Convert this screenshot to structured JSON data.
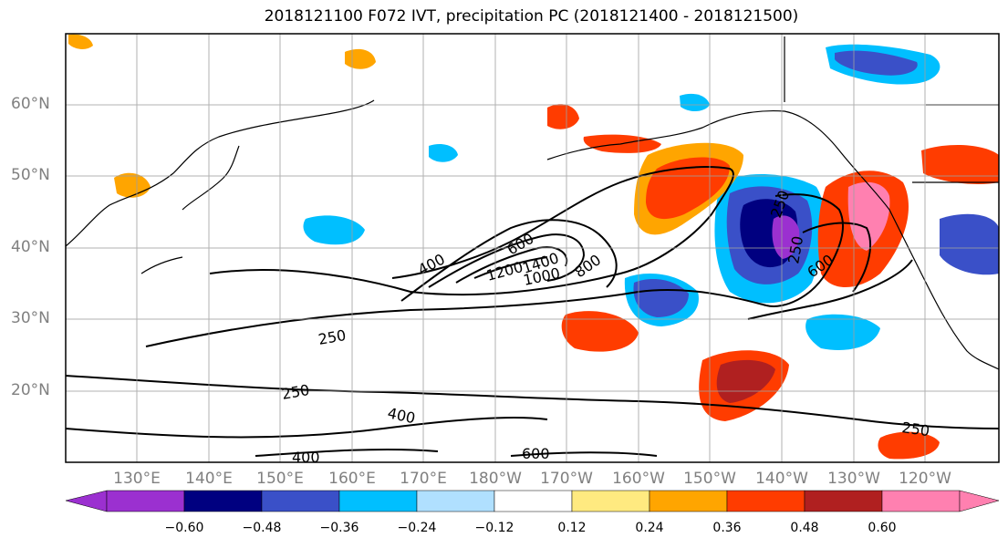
{
  "title": "2018121100 F072 IVT, precipitation PC (2018121400 - 2018121500)",
  "lat_labels": [
    "60°N",
    "50°N",
    "40°N",
    "30°N",
    "20°N"
  ],
  "lon_labels": [
    "130°E",
    "140°E",
    "150°E",
    "160°E",
    "170°E",
    "180°W",
    "170°W",
    "160°W",
    "150°W",
    "140°W",
    "130°W",
    "120°W"
  ],
  "contour_labels": [
    "400",
    "600",
    "1400",
    "1200",
    "1000",
    "800",
    "250",
    "250",
    "400",
    "400",
    "600",
    "250",
    "250",
    "600",
    "250"
  ],
  "colorbar": {
    "colors": [
      "#9b30d0",
      "#000080",
      "#3a50c8",
      "#00bfff",
      "#b0e0ff",
      "#ffffff",
      "#ffea80",
      "#ffa500",
      "#ff3c00",
      "#b02020",
      "#ff80b0"
    ],
    "extend_min_color": "#9b30d0",
    "extend_max_color": "#ff80b0",
    "labels": [
      "−0.60",
      "−0.48",
      "−0.36",
      "−0.24",
      "−0.12",
      "0.12",
      "0.24",
      "0.36",
      "0.48",
      "0.60"
    ]
  }
}
